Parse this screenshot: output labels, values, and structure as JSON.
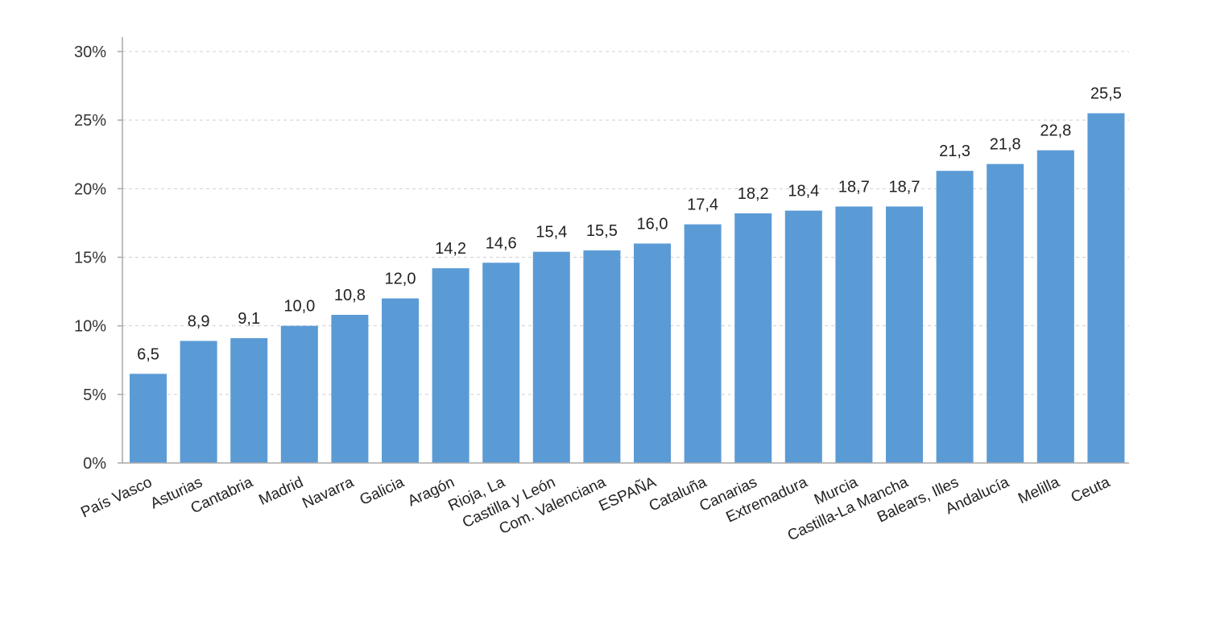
{
  "chart_data": {
    "type": "bar",
    "title": "",
    "xlabel": "",
    "ylabel": "",
    "categories": [
      "País Vasco",
      "Asturias",
      "Cantabria",
      "Madrid",
      "Navarra",
      "Galicia",
      "Aragón",
      "Rioja, La",
      "Castilla y León",
      "Com. Valenciana",
      "ESPAÑA",
      "Cataluña",
      "Canarias",
      "Extremadura",
      "Murcia",
      "Castilla-La Mancha",
      "Balears, Illes",
      "Andalucía",
      "Melilla",
      "Ceuta"
    ],
    "values": [
      6.5,
      8.9,
      9.1,
      10.0,
      10.8,
      12.0,
      14.2,
      14.6,
      15.4,
      15.5,
      16.0,
      17.4,
      18.2,
      18.4,
      18.7,
      18.7,
      21.3,
      21.8,
      22.8,
      25.5
    ],
    "value_labels": [
      "6,5",
      "8,9",
      "9,1",
      "10,0",
      "10,8",
      "12,0",
      "14,2",
      "14,6",
      "15,4",
      "15,5",
      "16,0",
      "17,4",
      "18,2",
      "18,4",
      "18,7",
      "18,7",
      "21,3",
      "21,8",
      "22,8",
      "25,5"
    ],
    "ylim": [
      0,
      30
    ],
    "yticks": [
      0,
      5,
      10,
      15,
      20,
      25,
      30
    ],
    "ytick_labels": [
      "0%",
      "5%",
      "10%",
      "15%",
      "20%",
      "25%",
      "30%"
    ],
    "grid": true,
    "legend": "none",
    "bar_color": "#5b9bd5"
  }
}
